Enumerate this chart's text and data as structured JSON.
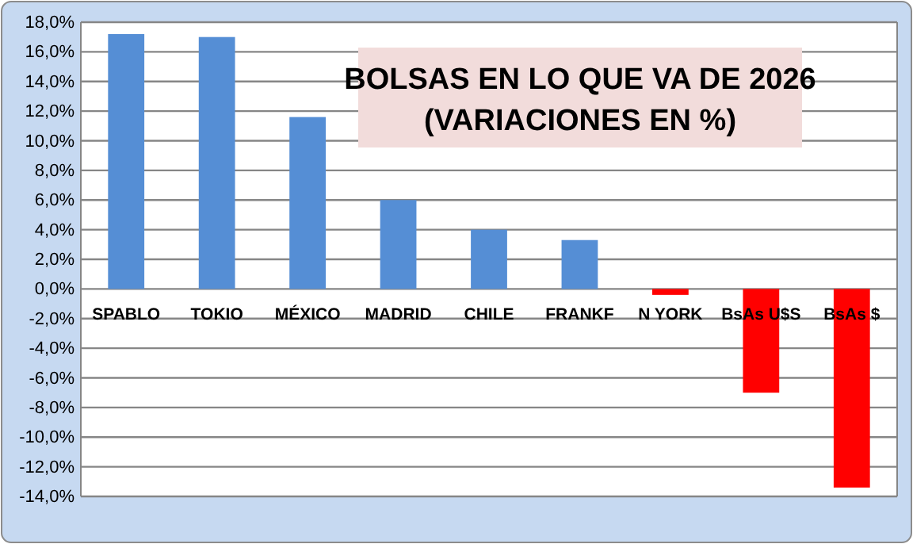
{
  "chart_data": {
    "type": "bar",
    "title": "BOLSAS EN LO QUE VA DE 2026\n(VARIACIONES EN %)",
    "categories": [
      "SPABLO",
      "TOKIO",
      "MÉXICO",
      "MADRID",
      "CHILE",
      "FRANKF",
      "N YORK",
      "BsAs U$S",
      "BsAs $"
    ],
    "values": [
      17.2,
      17.0,
      11.6,
      6.0,
      4.0,
      3.3,
      -0.4,
      -7.0,
      -13.4
    ],
    "colors": [
      "#558ed5",
      "#558ed5",
      "#558ed5",
      "#558ed5",
      "#558ed5",
      "#558ed5",
      "#ff0000",
      "#ff0000",
      "#ff0000"
    ],
    "ylim": [
      -14,
      18
    ],
    "yticks": [
      {
        "value": -14,
        "label": "-14,0%"
      },
      {
        "value": -12,
        "label": "-12,0%"
      },
      {
        "value": -10,
        "label": "-10,0%"
      },
      {
        "value": -8,
        "label": "-8,0%"
      },
      {
        "value": -6,
        "label": "-6,0%"
      },
      {
        "value": -4,
        "label": "-4,0%"
      },
      {
        "value": -2,
        "label": "-2,0%"
      },
      {
        "value": 0,
        "label": "0,0%"
      },
      {
        "value": 2,
        "label": "2,0%"
      },
      {
        "value": 4,
        "label": "4,0%"
      },
      {
        "value": 6,
        "label": "6,0%"
      },
      {
        "value": 8,
        "label": "8,0%"
      },
      {
        "value": 10,
        "label": "10,0%"
      },
      {
        "value": 12,
        "label": "12,0%"
      },
      {
        "value": 14,
        "label": "14,0%"
      },
      {
        "value": 16,
        "label": "16,0%"
      },
      {
        "value": 18,
        "label": "18,0%"
      }
    ],
    "grid": "y"
  }
}
